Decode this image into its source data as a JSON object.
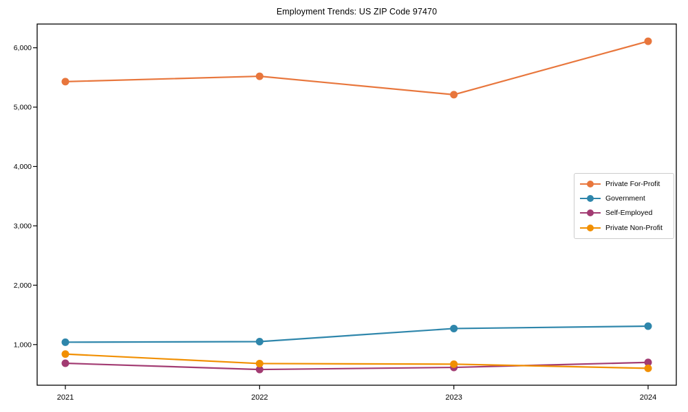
{
  "chart_data": {
    "type": "line",
    "title": "Employment Trends: US ZIP Code 97470",
    "x": [
      "2021",
      "2022",
      "2023",
      "2024"
    ],
    "series": [
      {
        "name": "Private For-Profit",
        "color": "#E8763C",
        "values": [
          5430,
          5520,
          5210,
          6110
        ]
      },
      {
        "name": "Government",
        "color": "#2E86AB",
        "values": [
          1040,
          1050,
          1270,
          1310
        ]
      },
      {
        "name": "Self-Employed",
        "color": "#A23B72",
        "values": [
          685,
          580,
          615,
          700
        ]
      },
      {
        "name": "Private Non-Profit",
        "color": "#F18F01",
        "values": [
          840,
          680,
          670,
          600
        ]
      }
    ],
    "ylim": [
      315,
      6400
    ],
    "yticks": [
      1000,
      2000,
      3000,
      4000,
      5000,
      6000
    ],
    "ytick_labels": [
      "1,000",
      "2,000",
      "3,000",
      "4,000",
      "5,000",
      "6,000"
    ],
    "xlabel": "",
    "ylabel": "",
    "grid": false,
    "legend_position": "center right",
    "axis_color": "#000000",
    "background_color": "#ffffff"
  }
}
